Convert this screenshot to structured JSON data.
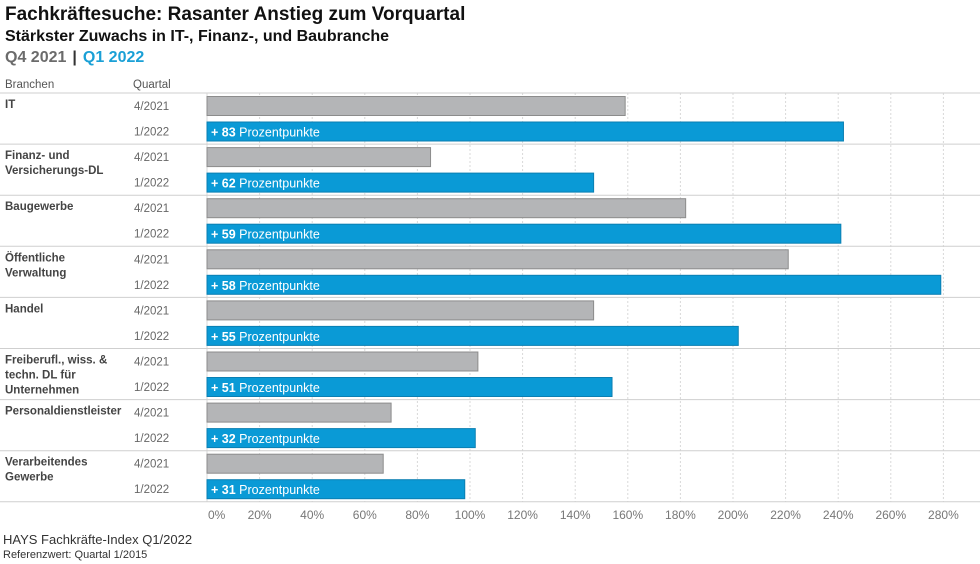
{
  "header": {
    "title": "Fachkräftesuche: Rasanter Anstieg zum Vorquartal",
    "subtitle": "Stärkster Zuwachs in IT-, Finanz-, und Baubranche",
    "legend_q4": "Q4 2021",
    "legend_separator": "|",
    "legend_q1": "Q1 2022"
  },
  "columns": {
    "branchen": "Branchen",
    "quartal": "Quartal"
  },
  "footer": {
    "source": "HAYS Fachkräfte-Index Q1/2022",
    "reference": "Referenzwert: Quartal 1/2015"
  },
  "colors": {
    "q4": "#b4b5b7",
    "q4_border": "#8c8c8c",
    "q1": "#0a9ad6",
    "q1_border": "#0b7fb2",
    "grid": "#d9d9d9",
    "separator": "#cfcfcf"
  },
  "chart_data": {
    "type": "bar",
    "orientation": "horizontal",
    "title": "Fachkräftesuche: Rasanter Anstieg zum Vorquartal",
    "subtitle": "Stärkster Zuwachs in IT-, Finanz-, und Baubranche",
    "xlabel": "",
    "ylabel": "Branchen",
    "xlim": [
      0,
      290
    ],
    "x_unit": "%",
    "x_ticks": [
      0,
      20,
      40,
      60,
      80,
      100,
      120,
      140,
      160,
      180,
      200,
      220,
      240,
      260,
      280
    ],
    "x_tick_labels": [
      "0%",
      "20%",
      "40%",
      "60%",
      "80%",
      "100%",
      "120%",
      "140%",
      "160%",
      "180%",
      "200%",
      "220%",
      "240%",
      "260%",
      "280%"
    ],
    "grid": true,
    "legend": "top-left",
    "series_quarter_labels": [
      "4/2021",
      "1/2022"
    ],
    "categories": [
      [
        "IT"
      ],
      [
        "Finanz- und",
        "Versicherungs-DL"
      ],
      [
        "Baugewerbe"
      ],
      [
        "Öffentliche",
        "Verwaltung"
      ],
      [
        "Handel"
      ],
      [
        "Freiberufl., wiss. &",
        "techn. DL für",
        "Unternehmen"
      ],
      [
        "Personaldienstleister"
      ],
      [
        "Verarbeitendes",
        "Gewerbe"
      ]
    ],
    "series": [
      {
        "name": "Q4 2021",
        "quarter": "4/2021",
        "values": [
          159,
          85,
          182,
          221,
          147,
          103,
          70,
          67
        ]
      },
      {
        "name": "Q1 2022",
        "quarter": "1/2022",
        "values": [
          242,
          147,
          241,
          279,
          202,
          154,
          102,
          98
        ]
      }
    ],
    "annotations": [
      {
        "prefix": "+ ",
        "value": "83",
        "suffix": " Prozentpunkte"
      },
      {
        "prefix": "+ ",
        "value": "62",
        "suffix": " Prozentpunkte"
      },
      {
        "prefix": "+ ",
        "value": "59",
        "suffix": " Prozentpunkte"
      },
      {
        "prefix": "+ ",
        "value": "58",
        "suffix": " Prozentpunkte"
      },
      {
        "prefix": "+ ",
        "value": "55",
        "suffix": " Prozentpunkte"
      },
      {
        "prefix": "+ ",
        "value": "51",
        "suffix": " Prozentpunkte"
      },
      {
        "prefix": "+ ",
        "value": "32",
        "suffix": " Prozentpunkte"
      },
      {
        "prefix": "+ ",
        "value": "31",
        "suffix": " Prozentpunkte"
      }
    ]
  }
}
